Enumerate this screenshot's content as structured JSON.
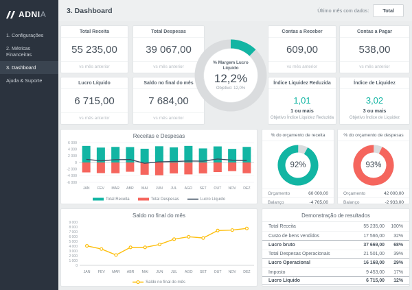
{
  "colors": {
    "teal": "#12b5a3",
    "red": "#f5655d",
    "navy": "#3d4d60",
    "yellow": "#fdbf0f",
    "ring_gray": "#dadcde",
    "sidebar": "#2b333e"
  },
  "sidebar": {
    "logo_bold": "ADNI",
    "logo_thin": "A",
    "items": [
      {
        "label": "1. Configurações",
        "active": false
      },
      {
        "label": "2. Métricas Financeiras",
        "active": false
      },
      {
        "label": "3. Dashboard",
        "active": true
      },
      {
        "label": "Ajuda & Suporte",
        "active": false
      }
    ]
  },
  "header": {
    "title": "3. Dashboard",
    "filter_label": "Último mês com dados:",
    "filter_value": "Total"
  },
  "kpi_cards": [
    {
      "title": "Total Receita",
      "value": "55 235,00",
      "subtitle": "vs mês anterior"
    },
    {
      "title": "Total Despesas",
      "value": "39 067,00",
      "subtitle": "vs mês anterior"
    },
    {
      "title": "Contas a Receber",
      "value": "609,00",
      "subtitle": "vs mês anterior"
    },
    {
      "title": "Contas a Pagar",
      "value": "538,00",
      "subtitle": "vs mês anterior"
    },
    {
      "title": "Lucro Líquido",
      "value": "6 715,00",
      "subtitle": "vs mês anterior"
    },
    {
      "title": "Saldo no final do mês",
      "value": "7 684,00",
      "subtitle": "vs mês anterior"
    }
  ],
  "ratio_cards": [
    {
      "title": "Índice Liquidez Reduzida",
      "value": "1,01",
      "target": "1 ou mais",
      "target_label": "Objetivo Índice Liquidez Reduzida"
    },
    {
      "title": "Índice de Liquidez",
      "value": "3,02",
      "target": "3 ou mais",
      "target_label": "Objetivo Índice de Liquidez"
    }
  ],
  "gauge": {
    "title": "% Margem Lucro Líquido",
    "value": "12,2%",
    "value_pct": 12.2,
    "objective": "Objetivo:  12,0%"
  },
  "budget_donuts": [
    {
      "title": "% do orçamento de receita",
      "pct": 92,
      "pct_label": "92%",
      "color_key": "teal",
      "rows": [
        {
          "label": "Orçamento",
          "value": "60 000,00"
        },
        {
          "label": "Balanço",
          "value": "-4 765,00"
        }
      ]
    },
    {
      "title": "% do orçamento de despesas",
      "pct": 93,
      "pct_label": "93%",
      "color_key": "red",
      "rows": [
        {
          "label": "Orçamento",
          "value": "42 000,00"
        },
        {
          "label": "Balanço",
          "value": "-2 933,00"
        }
      ]
    }
  ],
  "income_table": {
    "title": "Demonstração de resultados",
    "rows": [
      {
        "label": "Total Receita",
        "value": "55 235,00",
        "pct": "100%",
        "bold": false
      },
      {
        "label": "Custo de bens vendidos",
        "value": "17 566,00",
        "pct": "32%",
        "bold": false
      },
      {
        "label": "Lucro bruto",
        "value": "37 669,00",
        "pct": "68%",
        "bold": true
      },
      {
        "label": "Total Despesas Operacionais",
        "value": "21 501,00",
        "pct": "39%",
        "bold": false
      },
      {
        "label": "Lucro Operacional",
        "value": "16 168,00",
        "pct": "29%",
        "bold": true
      },
      {
        "label": "Imposto",
        "value": "9 453,00",
        "pct": "17%",
        "bold": false
      },
      {
        "label": "Lucro Líquido",
        "value": "6 715,00",
        "pct": "12%",
        "bold": true
      }
    ]
  },
  "chart_data": [
    {
      "type": "bar",
      "title": "Receitas e Despesas",
      "categories": [
        "JAN",
        "FEV",
        "MAR",
        "ABR",
        "MAI",
        "JUN",
        "JUL",
        "AGO",
        "SET",
        "OUT",
        "NOV",
        "DEZ"
      ],
      "series": [
        {
          "name": "Total Receita",
          "type": "bar",
          "swatch": "bar",
          "color_key": "teal",
          "values": [
            5000,
            4500,
            4700,
            4650,
            4150,
            4900,
            4550,
            5000,
            4250,
            4850,
            4100,
            4700
          ]
        },
        {
          "name": "Total Despesas",
          "type": "bar",
          "swatch": "bar",
          "color_key": "red",
          "values": [
            -3000,
            -3200,
            -3250,
            -2800,
            -3700,
            -3850,
            -3300,
            -3600,
            -3300,
            -2900,
            -2600,
            -3250
          ]
        },
        {
          "name": "Lucro Líquido",
          "type": "line",
          "swatch": "line",
          "color_key": "navy",
          "values": [
            950,
            500,
            850,
            900,
            -250,
            200,
            300,
            450,
            400,
            1050,
            700,
            620
          ]
        }
      ],
      "ylim": [
        -6000,
        6000
      ],
      "ytick_step": 2000,
      "legend_position": "bottom",
      "grid": false
    },
    {
      "type": "line",
      "title": "Saldo no final do mês",
      "categories": [
        "JAN",
        "FEV",
        "MAR",
        "ABR",
        "MAI",
        "JUN",
        "JUL",
        "AGO",
        "SET",
        "OUT",
        "NOV",
        "DEZ"
      ],
      "series": [
        {
          "name": "Saldo no final do mês",
          "type": "line",
          "swatch": "line-marker",
          "color_key": "yellow",
          "values": [
            4050,
            3400,
            2150,
            3750,
            3750,
            4350,
            5450,
            5950,
            5700,
            7250,
            7350,
            7684
          ]
        }
      ],
      "ylim": [
        0,
        9000
      ],
      "ytick_step": 1000,
      "legend_position": "bottom",
      "grid": false
    }
  ]
}
